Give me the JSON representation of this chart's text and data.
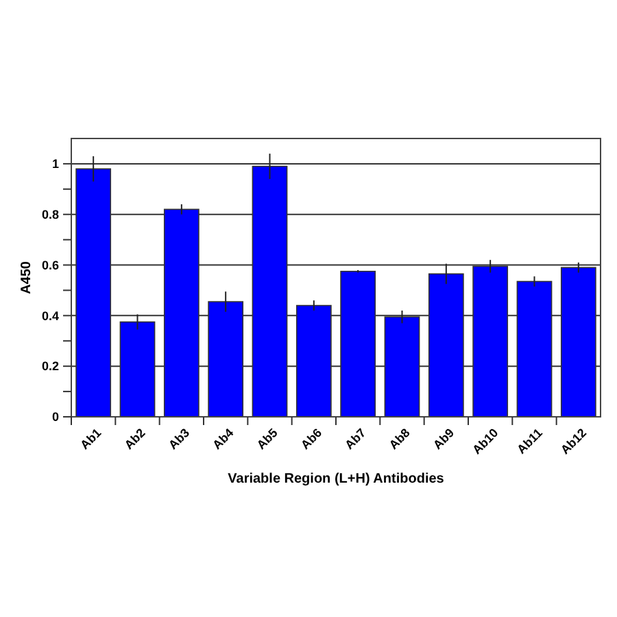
{
  "chart_data": {
    "type": "bar",
    "xlabel": "Variable Region (L+H) Antibodies",
    "ylabel": "A450",
    "categories": [
      "Ab1",
      "Ab2",
      "Ab3",
      "Ab4",
      "Ab5",
      "Ab6",
      "Ab7",
      "Ab8",
      "Ab9",
      "Ab10",
      "Ab11",
      "Ab12"
    ],
    "values": [
      0.98,
      0.375,
      0.82,
      0.455,
      0.99,
      0.44,
      0.575,
      0.395,
      0.565,
      0.595,
      0.535,
      0.59
    ],
    "errors": [
      0.05,
      0.03,
      0.02,
      0.04,
      0.05,
      0.02,
      0.005,
      0.025,
      0.04,
      0.025,
      0.02,
      0.02
    ],
    "color": "#0000ff",
    "ylim": [
      0,
      1.1
    ],
    "yticks": [
      0,
      {
        "value": 0.1,
        "label": null
      },
      0.2,
      {
        "value": 0.3,
        "label": null
      },
      0.4,
      {
        "value": 0.5,
        "label": null
      },
      0.6,
      {
        "value": 0.7,
        "label": null
      },
      0.8,
      {
        "value": 0.9,
        "label": null
      },
      1
    ],
    "grid": "y"
  }
}
